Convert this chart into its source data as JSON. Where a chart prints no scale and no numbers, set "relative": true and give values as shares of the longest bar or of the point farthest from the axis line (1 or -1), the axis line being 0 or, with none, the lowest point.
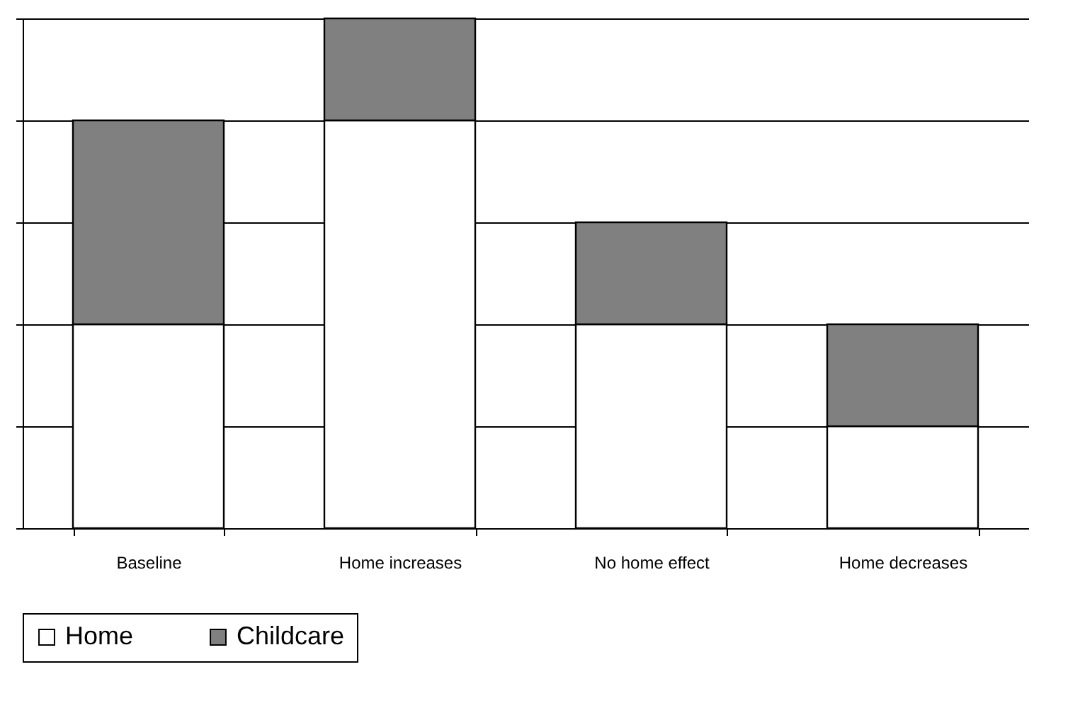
{
  "chart_data": {
    "type": "bar",
    "relative": true,
    "stacked": true,
    "grid": "y",
    "legend": "bottom",
    "categories": [
      "Baseline",
      "Home increases",
      "No home effect",
      "Home decreases"
    ],
    "series": [
      {
        "name": "Home",
        "color": "#ffffff",
        "values": [
          0.4,
          0.8,
          0.4,
          0.2
        ]
      },
      {
        "name": "Childcare",
        "color": "#808080",
        "values": [
          0.4,
          0.2,
          0.2,
          0.2
        ]
      }
    ]
  }
}
